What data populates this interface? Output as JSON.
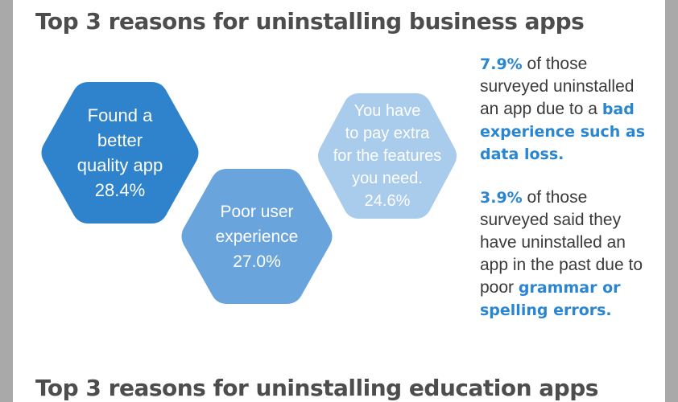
{
  "colors": {
    "dark_blue": "#2e83cc",
    "mid_blue": "#6aa4dc",
    "light_blue": "#a9cbec",
    "accent": "#2a86d1",
    "heading": "#4d4d4d"
  },
  "section1": {
    "title": "Top 3 reasons for uninstalling business apps"
  },
  "hexes": [
    {
      "lines": [
        "Found a",
        "better",
        "quality app",
        "28.4%"
      ],
      "value": 28.4
    },
    {
      "lines": [
        "Poor user",
        "experience",
        "27.0%"
      ],
      "value": 27.0
    },
    {
      "lines": [
        "You have",
        "to pay extra",
        "for the features",
        "you need.",
        "24.6%"
      ],
      "value": 24.6
    }
  ],
  "stats": [
    {
      "pct": "7.9%",
      "text_a": " of those surveyed uninstalled an app due to a ",
      "highlight": "bad experience such as data loss."
    },
    {
      "pct": "3.9%",
      "text_a": " of those surveyed said they have uninstalled an app in the past due to poor ",
      "highlight": "grammar or spelling errors."
    }
  ],
  "section2": {
    "title": "Top 3 reasons for uninstalling education apps"
  }
}
